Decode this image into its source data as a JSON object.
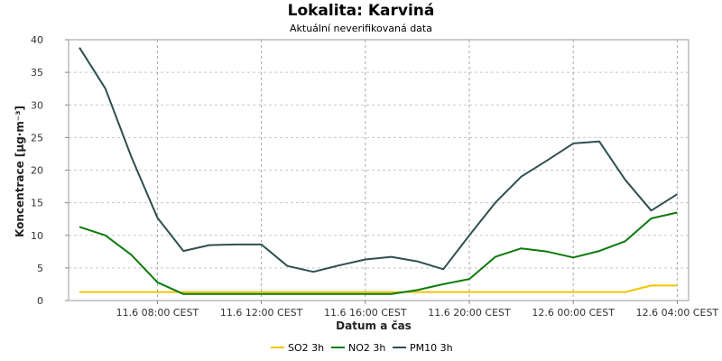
{
  "chart_data": {
    "type": "line",
    "title": "Lokalita: Karviná",
    "subtitle": "Aktuální neverifikovaná data",
    "xlabel": "Datum a čas",
    "ylabel": "Koncentrace [µg·m⁻³]",
    "ylim": [
      0,
      40
    ],
    "yticks": [
      0,
      5,
      10,
      15,
      20,
      25,
      30,
      35,
      40
    ],
    "x_start_label": "11.6 05:00 CEST",
    "x_step_hours": 1,
    "x": [
      "11.6 05:00",
      "11.6 06:00",
      "11.6 07:00",
      "11.6 08:00",
      "11.6 09:00",
      "11.6 10:00",
      "11.6 11:00",
      "11.6 12:00",
      "11.6 13:00",
      "11.6 14:00",
      "11.6 15:00",
      "11.6 16:00",
      "11.6 17:00",
      "11.6 18:00",
      "11.6 19:00",
      "11.6 20:00",
      "11.6 21:00",
      "11.6 22:00",
      "11.6 23:00",
      "12.6 00:00",
      "12.6 01:00",
      "12.6 02:00",
      "12.6 03:00",
      "12.6 04:00"
    ],
    "xticks": [
      {
        "index": 3,
        "label": "11.6 08:00 CEST"
      },
      {
        "index": 7,
        "label": "11.6 12:00 CEST"
      },
      {
        "index": 11,
        "label": "11.6 16:00 CEST"
      },
      {
        "index": 15,
        "label": "11.6 20:00 CEST"
      },
      {
        "index": 19,
        "label": "12.6 00:00 CEST"
      },
      {
        "index": 23,
        "label": "12.6 04:00 CEST"
      }
    ],
    "grid": true,
    "legend_position": "bottom-center",
    "series": [
      {
        "name": "SO2 3h",
        "color": "#f2c500",
        "values": [
          1.3,
          1.3,
          1.3,
          1.3,
          1.3,
          1.3,
          1.3,
          1.3,
          1.3,
          1.3,
          1.3,
          1.3,
          1.3,
          1.3,
          1.3,
          1.3,
          1.3,
          1.3,
          1.3,
          1.3,
          1.3,
          1.3,
          2.3,
          2.3
        ]
      },
      {
        "name": "NO2 3h",
        "color": "#0c7a0c",
        "values": [
          11.3,
          10.0,
          7.0,
          2.8,
          1.0,
          1.0,
          1.0,
          1.0,
          1.0,
          1.0,
          1.0,
          1.0,
          1.0,
          1.6,
          2.5,
          3.3,
          6.7,
          8.0,
          7.5,
          6.6,
          7.6,
          9.1,
          12.6,
          13.5
        ]
      },
      {
        "name": "PM10 3h",
        "color": "#2f4f4f",
        "values": [
          38.8,
          32.5,
          22.0,
          12.7,
          7.6,
          8.5,
          8.6,
          8.6,
          5.3,
          4.4,
          5.4,
          6.3,
          6.7,
          6.0,
          4.8,
          10.0,
          15.0,
          19.0,
          21.5,
          24.1,
          24.4,
          18.5,
          13.8,
          16.3
        ]
      }
    ]
  }
}
